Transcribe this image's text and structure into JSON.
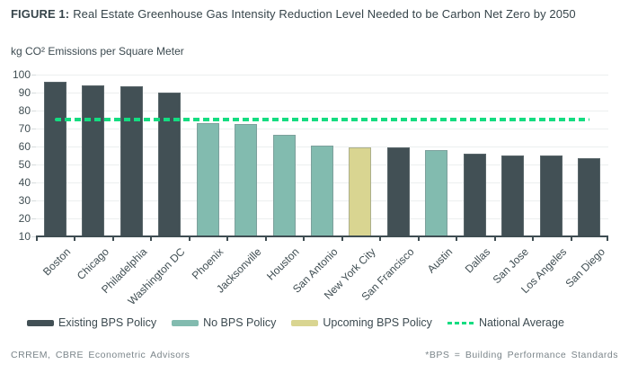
{
  "figure": {
    "label": "FIGURE 1:",
    "title": "Real Estate Greenhouse Gas Intensity Reduction Level Needed to be Carbon Net Zero by 2050"
  },
  "chart_data": {
    "type": "bar",
    "title": "FIGURE 1: Real Estate Greenhouse Gas Intensity Reduction Level Needed to be Carbon Net Zero by 2050",
    "ylabel": "kg CO² Emissions per Square Meter",
    "xlabel": "",
    "ylim": [
      10,
      100
    ],
    "ytick_step": 10,
    "grid": true,
    "legend_position": "bottom",
    "national_average": 75,
    "categories": [
      "Boston",
      "Chicago",
      "Philadelphia",
      "Washington DC",
      "Phoenix",
      "Jacksonville",
      "Houston",
      "San Antonio",
      "New York City",
      "San Francisco",
      "Austin",
      "Dallas",
      "San Jose",
      "Los Angeles",
      "San Diego"
    ],
    "values": [
      96,
      94,
      93.5,
      90,
      73,
      72.5,
      66.5,
      60.5,
      59.5,
      59.5,
      58,
      56,
      55,
      55,
      53.5
    ],
    "groups": [
      "existing",
      "existing",
      "existing",
      "existing",
      "no_policy",
      "no_policy",
      "no_policy",
      "no_policy",
      "upcoming",
      "existing",
      "no_policy",
      "existing",
      "existing",
      "existing",
      "existing"
    ]
  },
  "colors": {
    "existing": "#425055",
    "no_policy": "#82bbaf",
    "upcoming": "#d9d591",
    "national_average": "#15dc81",
    "axis": "#3f4d52",
    "gridline": "#ecefef"
  },
  "legend": {
    "items": [
      {
        "label": "Existing BPS Policy",
        "swatch": "existing",
        "style": "solid"
      },
      {
        "label": "No BPS Policy",
        "swatch": "no_policy",
        "style": "solid"
      },
      {
        "label": "Upcoming BPS Policy",
        "swatch": "upcoming",
        "style": "solid"
      },
      {
        "label": "National Average",
        "swatch": "national_average",
        "style": "dashed"
      }
    ]
  },
  "footer": {
    "source": "CRREM, CBRE Econometric Advisors",
    "footnote": "*BPS = Building Performance Standards"
  }
}
